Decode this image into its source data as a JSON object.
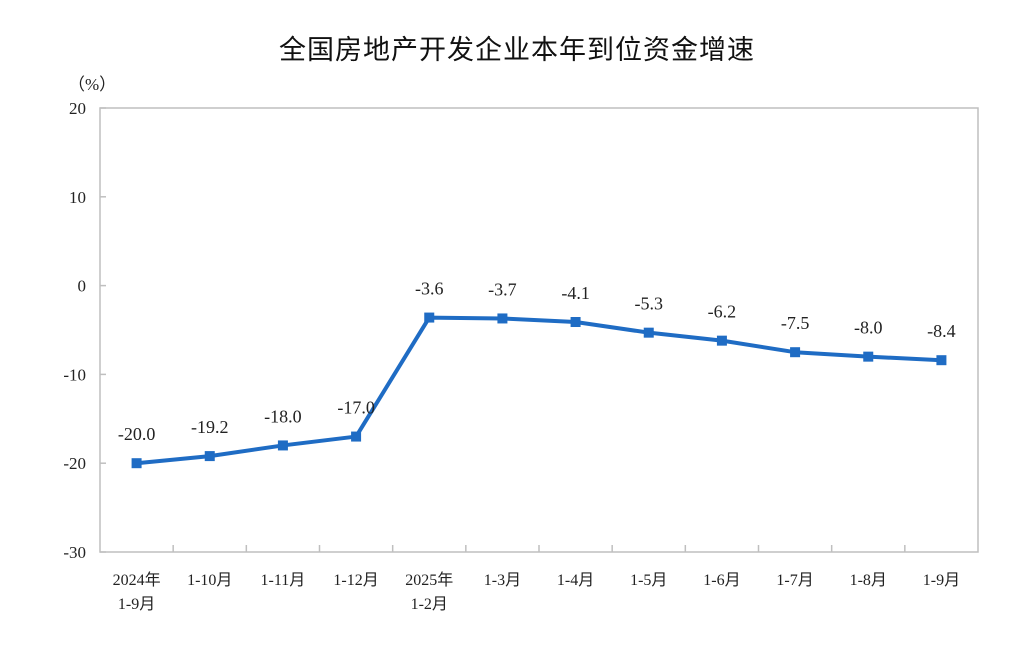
{
  "chart_data": {
    "type": "line",
    "title": "全国房地产开发企业本年到位资金增速",
    "ylabel": "（%）",
    "ylim": [
      -30,
      20
    ],
    "yticks": [
      20,
      10,
      0,
      -10,
      -20,
      -30
    ],
    "grid": false,
    "categories": [
      [
        "2024年",
        "1-9月"
      ],
      [
        "1-10月"
      ],
      [
        "1-11月"
      ],
      [
        "1-12月"
      ],
      [
        "2025年",
        "1-2月"
      ],
      [
        "1-3月"
      ],
      [
        "1-4月"
      ],
      [
        "1-5月"
      ],
      [
        "1-6月"
      ],
      [
        "1-7月"
      ],
      [
        "1-8月"
      ],
      [
        "1-9月"
      ]
    ],
    "values": [
      -20.0,
      -19.2,
      -18.0,
      -17.0,
      -3.6,
      -3.7,
      -4.1,
      -5.3,
      -6.2,
      -7.5,
      -8.0,
      -8.4
    ],
    "data_labels": [
      "-20.0",
      "-19.2",
      "-18.0",
      "-17.0",
      "-3.6",
      "-3.7",
      "-4.1",
      "-5.3",
      "-6.2",
      "-7.5",
      "-8.0",
      "-8.4"
    ],
    "line_color": "#1f6cc4",
    "axis_color": "#bfbfbf"
  }
}
